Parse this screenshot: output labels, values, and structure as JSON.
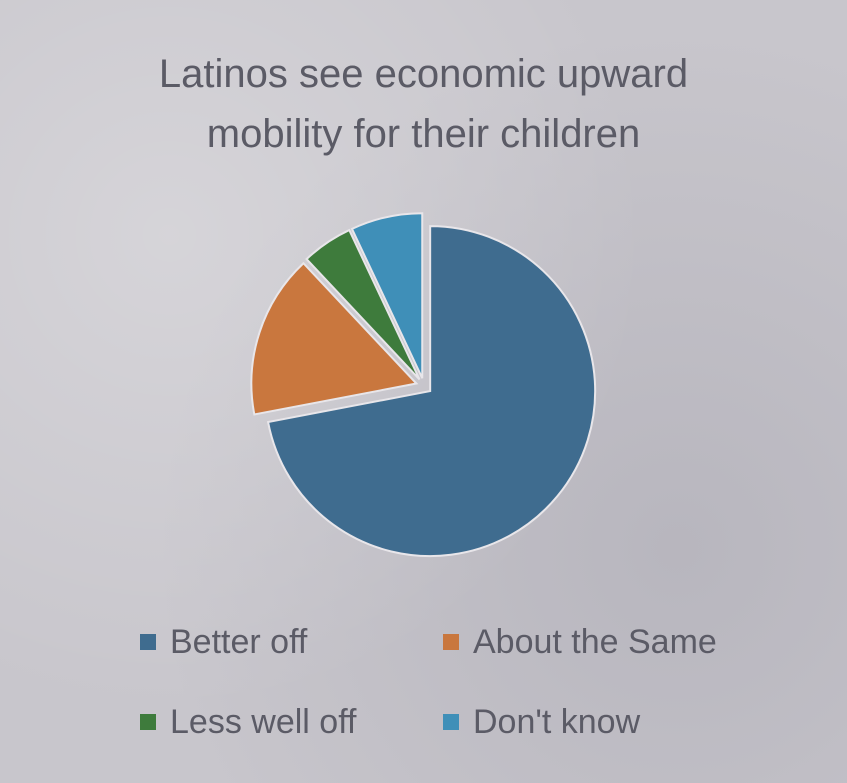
{
  "chart_data": {
    "type": "pie",
    "title": "Latinos see economic upward mobility for their children",
    "categories": [
      "Better off",
      "About the Same",
      "Less well off",
      "Don't know"
    ],
    "values": [
      72,
      16,
      5,
      7
    ],
    "colors": [
      "#3f6c8f",
      "#c9773e",
      "#3e7b3c",
      "#3f8fb8"
    ],
    "legend_position": "bottom"
  }
}
